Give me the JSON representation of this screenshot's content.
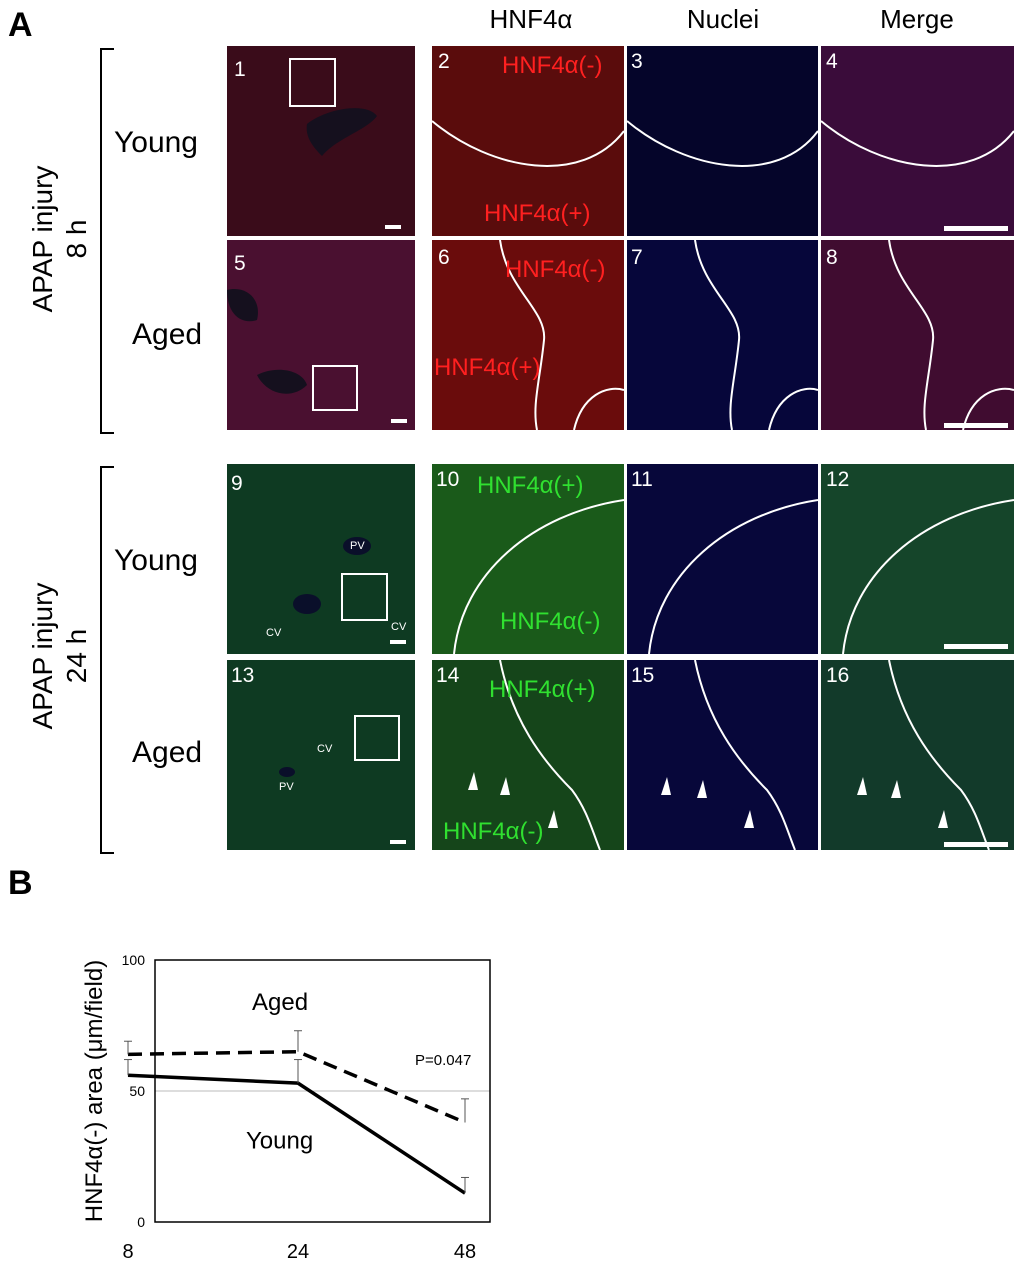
{
  "panelA": {
    "letter": "A",
    "columns": [
      "HNF4α",
      "Nuclei",
      "Merge"
    ],
    "groups": [
      {
        "label_line1": "APAP injury",
        "label_line2": "8 h"
      },
      {
        "label_line1": "APAP injury",
        "label_line2": "24 h"
      }
    ],
    "rows": [
      "Young",
      "Aged",
      "Young",
      "Aged"
    ],
    "tile_numbers": [
      "1",
      "2",
      "3",
      "4",
      "5",
      "6",
      "7",
      "8",
      "9",
      "10",
      "11",
      "12",
      "13",
      "14",
      "15",
      "16"
    ],
    "overlay_labels": {
      "t2_top": "HNF4α(-)",
      "t2_bottom": "HNF4α(+)",
      "t6_top": "HNF4α(-)",
      "t6_bottom": "HNF4α(+)",
      "t10_top": "HNF4α(+)",
      "t10_bottom": "HNF4α(-)",
      "t14_top": "HNF4α(+)",
      "t14_bottom": "HNF4α(-)"
    },
    "vessel_labels": {
      "pv": "PV",
      "cv": "CV"
    },
    "colors": {
      "red_stain": "#8a1010",
      "blue_stain": "#1010c8",
      "green_stain": "#2a8a2a"
    }
  },
  "panelB": {
    "letter": "B",
    "chart_data": {
      "type": "line",
      "x": [
        8,
        24,
        48
      ],
      "xticks": [
        "8",
        "24",
        "48"
      ],
      "yticks": [
        "0",
        "50",
        "100"
      ],
      "ylabel": "HNF4α(-) area (μm/field)",
      "ylim": [
        0,
        100
      ],
      "reference_line": 50,
      "series": [
        {
          "name": "Aged",
          "values": [
            64,
            65,
            38
          ],
          "errors": [
            5,
            8,
            9
          ],
          "style": "dashed"
        },
        {
          "name": "Young",
          "values": [
            56,
            53,
            11
          ],
          "errors": [
            6,
            9,
            6
          ],
          "style": "solid"
        }
      ],
      "annotation": "P=0.047"
    }
  }
}
